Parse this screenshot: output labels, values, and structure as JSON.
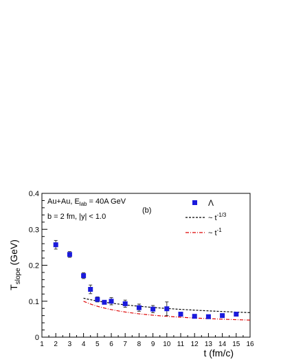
{
  "chart_data": {
    "type": "scatter",
    "title": "",
    "xlabel": "t (fm/c)",
    "ylabel_main": "T",
    "ylabel_sub": "slope",
    "ylabel_unit": " (GeV)",
    "xlim": [
      1,
      16
    ],
    "ylim": [
      0,
      0.4
    ],
    "x_ticks": [
      1,
      2,
      3,
      4,
      5,
      6,
      7,
      8,
      9,
      10,
      11,
      12,
      13,
      14,
      15,
      16
    ],
    "y_ticks": [
      0,
      0.1,
      0.2,
      0.3,
      0.4
    ],
    "y_tick_labels": [
      "0",
      "0.1",
      "0.2",
      "0.3",
      "0.4"
    ],
    "grid": false,
    "legend_position": "top-right",
    "annotations": {
      "line1_prefix": "Au+Au, E",
      "line1_sub": "lab",
      "line1_suffix": " = 40A GeV",
      "line2": "b = 2 fm, |y| < 1.0",
      "panel": "(b)"
    },
    "legend": {
      "lambda": "Λ",
      "fit1_prefix": "~ t",
      "fit1_exp": "-1/3",
      "fit2_prefix": "~ t",
      "fit2_exp": "-1"
    },
    "series": [
      {
        "name": "Λ",
        "color": "#1a1adc",
        "marker": "square",
        "points": [
          {
            "x": 2.0,
            "y": 0.257,
            "err": 0.012
          },
          {
            "x": 3.0,
            "y": 0.23,
            "err": 0.008
          },
          {
            "x": 4.0,
            "y": 0.171,
            "err": 0.008
          },
          {
            "x": 4.5,
            "y": 0.133,
            "err": 0.012
          },
          {
            "x": 5.0,
            "y": 0.105,
            "err": 0.007
          },
          {
            "x": 5.5,
            "y": 0.097,
            "err": 0.005
          },
          {
            "x": 6.0,
            "y": 0.1,
            "err": 0.01
          },
          {
            "x": 7.0,
            "y": 0.093,
            "err": 0.01
          },
          {
            "x": 8.0,
            "y": 0.082,
            "err": 0.01
          },
          {
            "x": 9.0,
            "y": 0.078,
            "err": 0.01
          },
          {
            "x": 10.0,
            "y": 0.079,
            "err": 0.019
          },
          {
            "x": 11.0,
            "y": 0.064,
            "err": 0.004
          },
          {
            "x": 12.0,
            "y": 0.058,
            "err": 0.004
          },
          {
            "x": 13.0,
            "y": 0.057,
            "err": 0.004
          },
          {
            "x": 14.0,
            "y": 0.06,
            "err": 0.004
          },
          {
            "x": 15.0,
            "y": 0.064,
            "err": 0.004
          }
        ]
      },
      {
        "name": "~ t^-1/3",
        "type": "line",
        "style": "dashed",
        "color": "#000000",
        "formula": "0.172 * t^(-1/3)",
        "x_range": [
          4,
          16
        ]
      },
      {
        "name": "~ t^-1",
        "type": "line",
        "style": "dash-dot",
        "color": "#dd0000",
        "formula": "0.03 + 0.28 / t",
        "x_range": [
          4,
          16
        ]
      }
    ]
  }
}
